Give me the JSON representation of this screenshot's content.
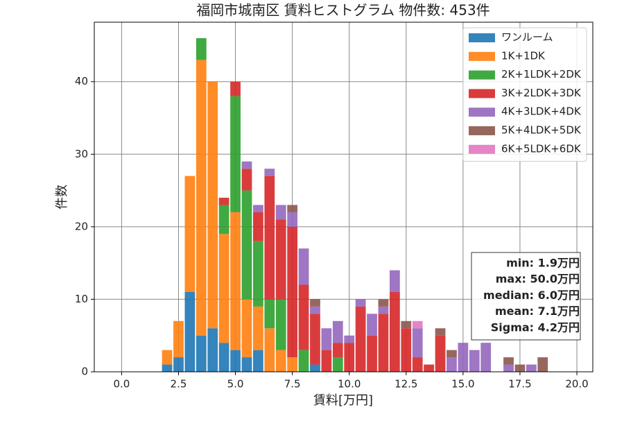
{
  "chart_data": {
    "type": "histogram",
    "title": "福岡市城南区 賃料ヒストグラム  物件数: 453件",
    "x_label": "賃料[万円]",
    "y_label": "件数",
    "bins": [
      1.75,
      2.25,
      2.75,
      3.25,
      3.75,
      4.25,
      4.75,
      5.25,
      5.75,
      6.25,
      6.75,
      7.25,
      7.75,
      8.25,
      8.75,
      9.25,
      9.75,
      10.25,
      10.75,
      11.25,
      11.75,
      12.25,
      12.75,
      13.25,
      13.75,
      14.25,
      14.75,
      15.25,
      15.75,
      16.25,
      16.75,
      17.25,
      17.75,
      18.25,
      18.75
    ],
    "series": [
      {
        "name": "ワンルーム",
        "color": "#1f77b4",
        "values": [
          1,
          2,
          11,
          5,
          6,
          4,
          3,
          2,
          3,
          0,
          0,
          0,
          0,
          1,
          0,
          0,
          0,
          0,
          0,
          0,
          0,
          0,
          0,
          0,
          0,
          0,
          0,
          0,
          0,
          0,
          0,
          0,
          0,
          0
        ]
      },
      {
        "name": "1K+1DK",
        "color": "#ff7f0e",
        "values": [
          2,
          5,
          16,
          38,
          34,
          15,
          19,
          8,
          6,
          6,
          3,
          2,
          0,
          0,
          0,
          0,
          0,
          0,
          0,
          0,
          0,
          0,
          0,
          0,
          0,
          0,
          0,
          0,
          0,
          0,
          0,
          0,
          0,
          0
        ]
      },
      {
        "name": "2K+1LDK+2DK",
        "color": "#2ca02c",
        "values": [
          0,
          0,
          0,
          3,
          0,
          4,
          16,
          15,
          9,
          4,
          7,
          0,
          3,
          0,
          0,
          2,
          0,
          0,
          0,
          0,
          0,
          0,
          0,
          0,
          0,
          0,
          0,
          0,
          0,
          0,
          0,
          0,
          0,
          0
        ]
      },
      {
        "name": "3K+2LDK+3DK",
        "color": "#d62728",
        "values": [
          0,
          0,
          0,
          0,
          0,
          1,
          2,
          3,
          4,
          17,
          11,
          18,
          9,
          7,
          3,
          2,
          4,
          9,
          5,
          8,
          11,
          6,
          2,
          1,
          5,
          0,
          0,
          0,
          0,
          0,
          0,
          0,
          0,
          0
        ]
      },
      {
        "name": "4K+3LDK+4DK",
        "color": "#9467bd",
        "values": [
          0,
          0,
          0,
          0,
          0,
          0,
          0,
          1,
          1,
          1,
          2,
          2,
          5,
          1,
          3,
          3,
          1,
          1,
          3,
          1,
          3,
          0,
          4,
          0,
          0,
          2,
          4,
          3,
          4,
          0,
          1,
          0,
          1,
          0
        ]
      },
      {
        "name": "5K+4LDK+5DK",
        "color": "#8c564b",
        "values": [
          0,
          0,
          0,
          0,
          0,
          0,
          0,
          0,
          0,
          0,
          0,
          1,
          0,
          1,
          0,
          0,
          0,
          0,
          0,
          1,
          0,
          1,
          0,
          0,
          1,
          1,
          0,
          0,
          0,
          0,
          1,
          1,
          0,
          2
        ]
      },
      {
        "name": "6K+5LDK+6DK",
        "color": "#e377c2",
        "values": [
          0,
          0,
          0,
          0,
          0,
          0,
          0,
          0,
          0,
          0,
          0,
          0,
          0,
          0,
          0,
          0,
          0,
          0,
          0,
          0,
          0,
          0,
          1,
          0,
          0,
          0,
          0,
          0,
          0,
          0,
          0,
          0,
          0,
          0
        ]
      }
    ],
    "xlim": [
      -1.2,
      20.7
    ],
    "ylim": [
      0,
      48.2
    ],
    "xticks": [
      {
        "value": 0,
        "label": "0.0"
      },
      {
        "value": 2.5,
        "label": "2.5"
      },
      {
        "value": 5,
        "label": "5.0"
      },
      {
        "value": 7.5,
        "label": "7.5"
      },
      {
        "value": 10,
        "label": "10.0"
      },
      {
        "value": 12.5,
        "label": "12.5"
      },
      {
        "value": 15,
        "label": "15.0"
      },
      {
        "value": 17.5,
        "label": "17.5"
      },
      {
        "value": 20,
        "label": "20.0"
      }
    ],
    "yticks": [
      0,
      10,
      20,
      30,
      40
    ],
    "grid": true,
    "legend": "upper right",
    "annotation": [
      "min: 1.9万円",
      "max: 50.0万円",
      "median: 6.0万円",
      "mean: 7.1万円",
      "Sigma: 4.2万円"
    ]
  }
}
